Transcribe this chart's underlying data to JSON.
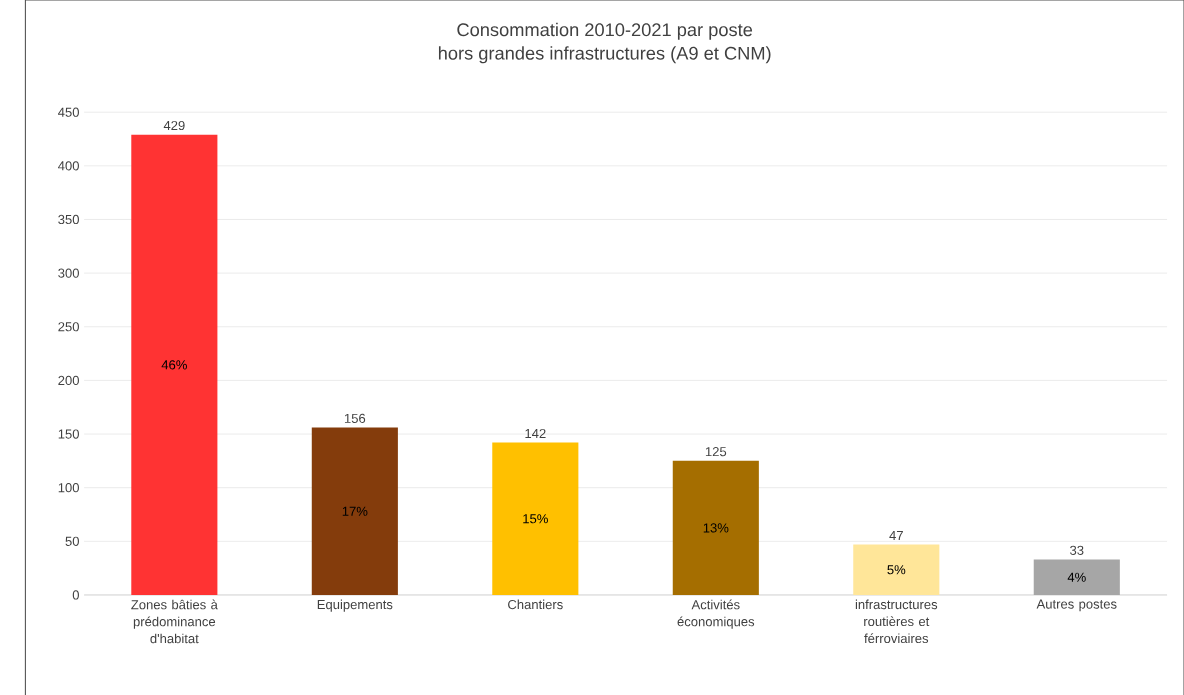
{
  "chart_data": {
    "type": "bar",
    "title": "Consommation 2010-2021 par poste",
    "subtitle": "hors grandes infrastructures (A9 et CNM)",
    "categories": [
      "Zones bâties à prédominance d'habitat",
      "Equipements",
      "Chantiers",
      "Activités économiques",
      "infrastructures routières et férroviaires",
      "Autres postes"
    ],
    "values": [
      429,
      156,
      142,
      125,
      47,
      33
    ],
    "colors": [
      "#ff3333",
      "#843c0c",
      "#ffc000",
      "#a56e00",
      "#ffe699",
      "#a6a6a6"
    ],
    "data_labels": true,
    "ylim": [
      0,
      450
    ],
    "yticks": [
      0,
      50,
      100,
      150,
      200,
      250,
      300,
      350,
      400,
      450
    ],
    "grid": "y",
    "annotations": [
      "46%",
      "17%",
      "15%",
      "13%",
      "5%",
      "4%"
    ]
  }
}
